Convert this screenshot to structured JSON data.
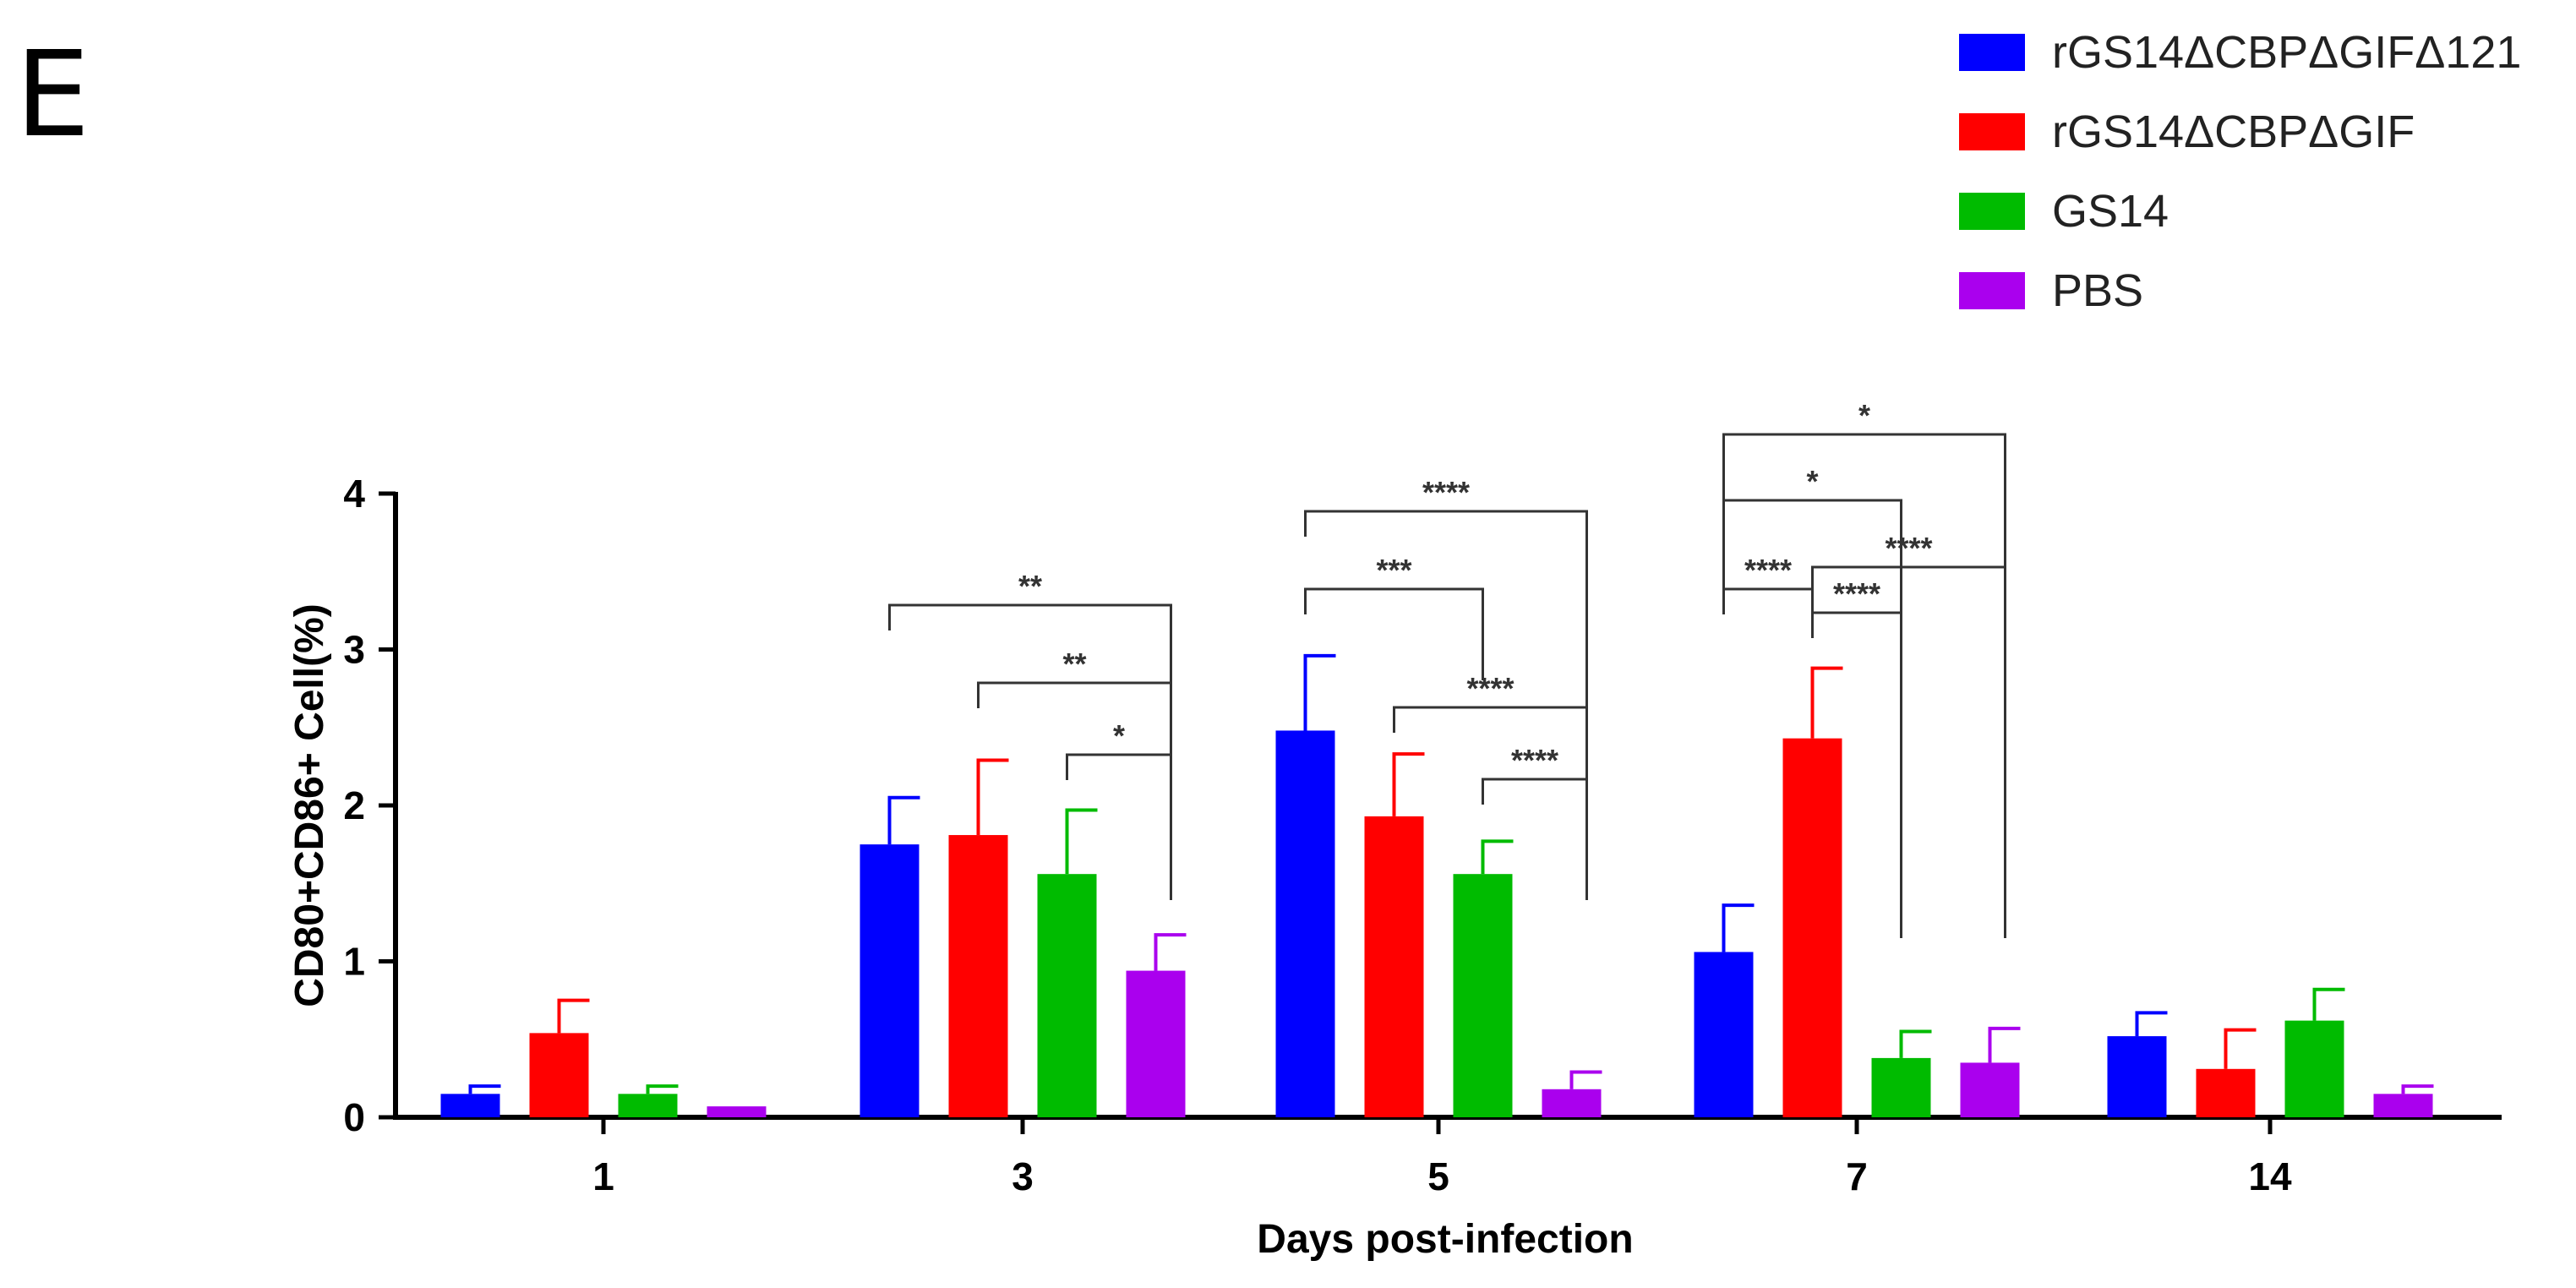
{
  "panel_label": "E",
  "chart_data": {
    "type": "bar",
    "title": "",
    "xlabel": "Days post-infection",
    "ylabel": "CD80+CD86+ Cell(%)",
    "ylim": [
      0,
      4
    ],
    "yticks": [
      "0",
      "1",
      "2",
      "3",
      "4"
    ],
    "categories": [
      "1",
      "3",
      "5",
      "7",
      "14"
    ],
    "series": [
      {
        "name": "rGS14ΔCBPΔGIFΔ121",
        "color": "#0000ff",
        "values": [
          0.15,
          1.75,
          2.48,
          1.06,
          0.52
        ],
        "errors": [
          0.05,
          0.3,
          0.48,
          0.3,
          0.15
        ]
      },
      {
        "name": "rGS14ΔCBPΔGIF",
        "color": "#ff0000",
        "values": [
          0.54,
          1.81,
          1.93,
          2.43,
          0.31
        ],
        "errors": [
          0.21,
          0.48,
          0.4,
          0.45,
          0.25
        ]
      },
      {
        "name": "GS14",
        "color": "#00bb00",
        "values": [
          0.15,
          1.56,
          1.56,
          0.38,
          0.62
        ],
        "errors": [
          0.05,
          0.41,
          0.21,
          0.17,
          0.2
        ]
      },
      {
        "name": "PBS",
        "color": "#aa00ee",
        "values": [
          0.07,
          0.94,
          0.18,
          0.35,
          0.15
        ],
        "errors": [
          0.0,
          0.23,
          0.11,
          0.22,
          0.05
        ]
      }
    ],
    "legend_position": "top-right",
    "significance": [
      {
        "category": "3",
        "from": 0,
        "to": 3,
        "label": "**"
      },
      {
        "category": "3",
        "from": 1,
        "to": 3,
        "label": "**"
      },
      {
        "category": "3",
        "from": 2,
        "to": 3,
        "label": "*"
      },
      {
        "category": "5",
        "from": 0,
        "to": 3,
        "label": "****"
      },
      {
        "category": "5",
        "from": 0,
        "to": 2,
        "label": "***"
      },
      {
        "category": "5",
        "from": 1,
        "to": 3,
        "label": "****"
      },
      {
        "category": "5",
        "from": 2,
        "to": 3,
        "label": "****"
      },
      {
        "category": "7",
        "from": 0,
        "to": 3,
        "label": "*"
      },
      {
        "category": "7",
        "from": 0,
        "to": 2,
        "label": "*"
      },
      {
        "category": "7",
        "from": 1,
        "to": 3,
        "label": "****"
      },
      {
        "category": "7",
        "from": 0,
        "to": 1,
        "label": "****"
      },
      {
        "category": "7",
        "from": 1,
        "to": 2,
        "label": "****"
      }
    ]
  }
}
